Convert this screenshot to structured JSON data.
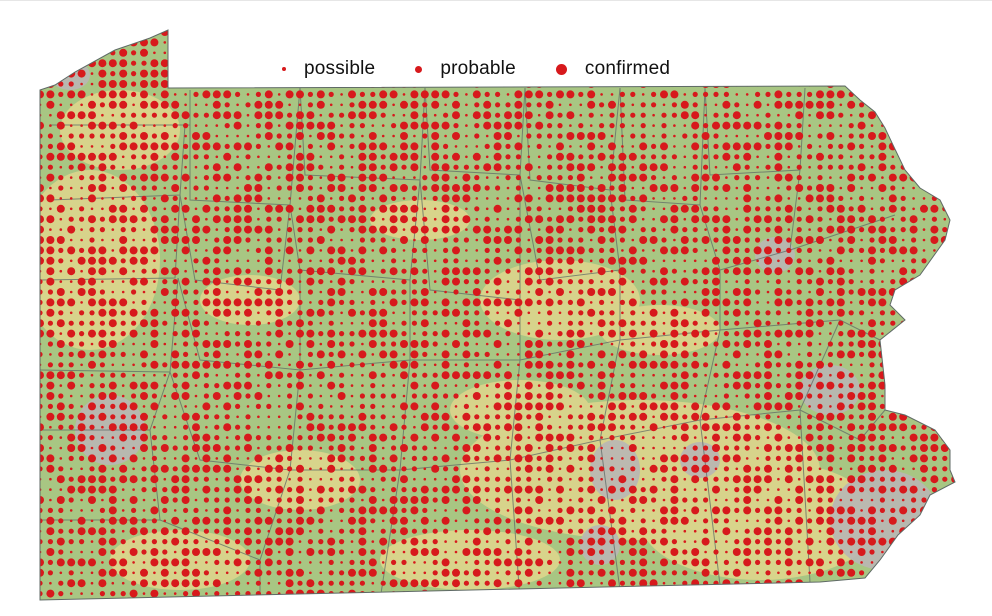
{
  "legend": {
    "items": [
      {
        "key": "possible",
        "label": "possible",
        "color": "#d7191c"
      },
      {
        "key": "probable",
        "label": "probable",
        "color": "#d7191c"
      },
      {
        "key": "confirmed",
        "label": "confirmed",
        "color": "#d7191c"
      }
    ]
  },
  "colors": {
    "forest_green": "#9cc07e",
    "farmland_yellow": "#ddd58c",
    "developed_grey": "#b7b5b2",
    "water_blue": "#a7c4d8",
    "county_border": "#5f6a66",
    "dot_red": "#d7191c"
  }
}
